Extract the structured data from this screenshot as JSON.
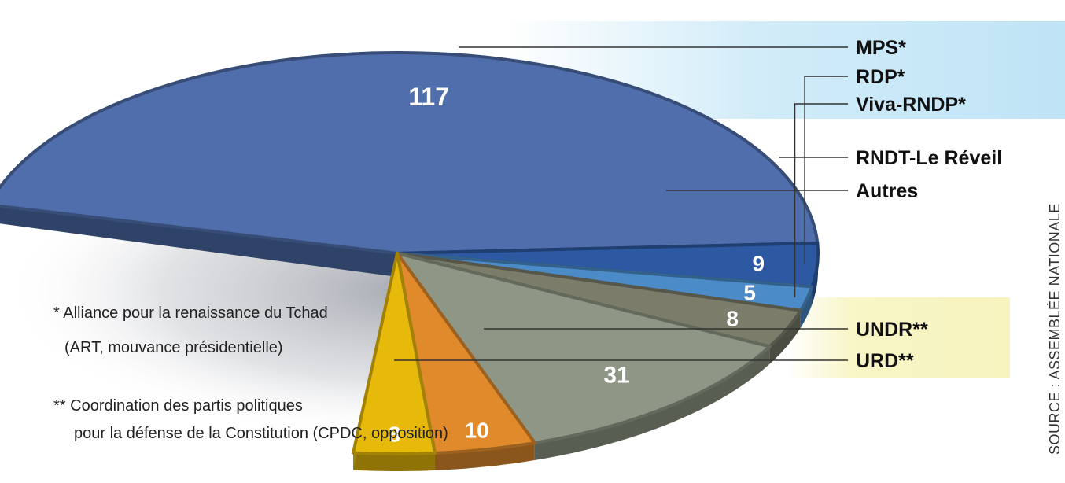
{
  "chart_data": {
    "type": "pie",
    "categories": [
      "MPS*",
      "RDP*",
      "Viva-RNDP*",
      "RNDT-Le Réveil",
      "Autres",
      "UNDR**",
      "URD**"
    ],
    "values": [
      117,
      9,
      5,
      8,
      31,
      10,
      8
    ],
    "labels": [
      "117",
      "9",
      "5",
      "8",
      "31",
      "10",
      "8"
    ],
    "colors": [
      "#4f6eab",
      "#2c59a1",
      "#4a8bc8",
      "#7b7c6a",
      "#8e9785",
      "#e08a2c",
      "#e6b90a"
    ],
    "groups": [
      {
        "members": [
          "MPS*",
          "RDP*",
          "Viva-RNDP*"
        ],
        "color": "#bfe4f6"
      },
      {
        "members": [
          "UNDR**",
          "URD**"
        ],
        "color": "#f7f4c0"
      }
    ]
  },
  "notes": {
    "art_line1": "* Alliance pour la renaissance du Tchad",
    "art_line2": "(ART, mouvance présidentielle)",
    "cpdc_line1": "** Coordination des partis politiques",
    "cpdc_line2": "pour la défense de la Constitution (CPDC, opposition)"
  },
  "source": "SOURCE : ASSEMBLÉE NATIONALE"
}
